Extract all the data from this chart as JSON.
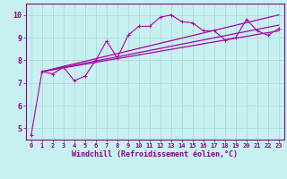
{
  "xlabel": "Windchill (Refroidissement éolien,°C)",
  "bg_color": "#c8f0f0",
  "line_color": "#aa00aa",
  "grid_color": "#aadddd",
  "axis_color": "#880088",
  "text_color": "#880088",
  "xlim": [
    -0.5,
    23.5
  ],
  "ylim": [
    4.5,
    10.5
  ],
  "xticks": [
    0,
    1,
    2,
    3,
    4,
    5,
    6,
    7,
    8,
    9,
    10,
    11,
    12,
    13,
    14,
    15,
    16,
    17,
    18,
    19,
    20,
    21,
    22,
    23
  ],
  "yticks": [
    5,
    6,
    7,
    8,
    9,
    10
  ],
  "raw_x": [
    0,
    1,
    2,
    3,
    4,
    5,
    6,
    7,
    8,
    9,
    10,
    11,
    12,
    13,
    14,
    15,
    16,
    17,
    18,
    19,
    20,
    21,
    22,
    23
  ],
  "raw_y": [
    4.7,
    7.5,
    7.4,
    7.7,
    7.1,
    7.3,
    8.0,
    8.85,
    8.1,
    9.1,
    9.5,
    9.5,
    9.9,
    10.0,
    9.7,
    9.65,
    9.3,
    9.3,
    8.9,
    9.0,
    9.8,
    9.3,
    9.1,
    9.4
  ],
  "trend1_x": [
    1,
    23
  ],
  "trend1_y": [
    7.5,
    10.0
  ],
  "trend2_x": [
    1,
    23
  ],
  "trend2_y": [
    7.5,
    9.55
  ],
  "trend3_x": [
    1,
    23
  ],
  "trend3_y": [
    7.5,
    9.3
  ],
  "marker": "+"
}
